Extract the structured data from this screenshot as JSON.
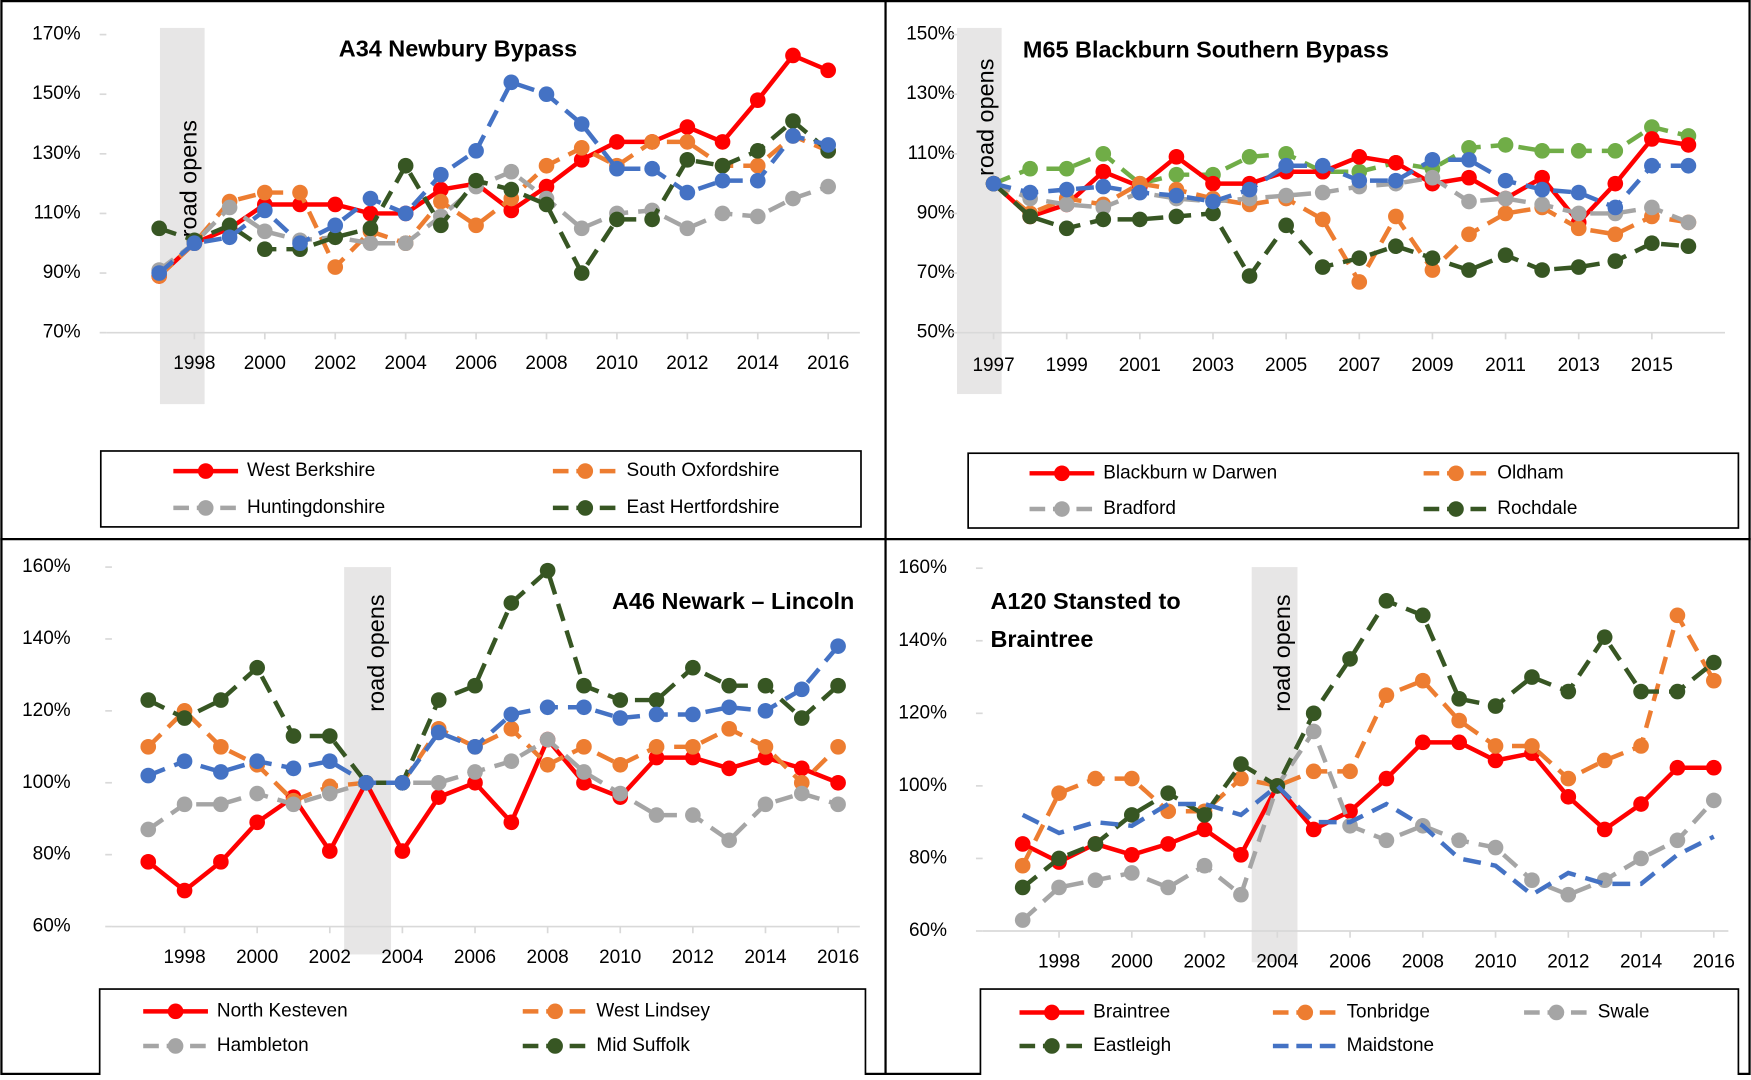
{
  "chart_data": [
    {
      "type": "line",
      "title": "A34 Newbury Bypass",
      "annotation": "road opens",
      "x": [
        1997,
        1998,
        1999,
        2000,
        2001,
        2002,
        2003,
        2004,
        2005,
        2006,
        2007,
        2008,
        2009,
        2010,
        2011,
        2012,
        2013,
        2014,
        2015,
        2016
      ],
      "xlim": [
        1995.5,
        2016.9
      ],
      "xticks": [
        1998,
        2000,
        2002,
        2004,
        2006,
        2008,
        2010,
        2012,
        2014,
        2016
      ],
      "ylim": [
        70,
        170
      ],
      "yticks": [
        {
          "value": 70,
          "label": "70%"
        },
        {
          "value": 90,
          "label": "90%"
        },
        {
          "value": 110,
          "label": "110%"
        },
        {
          "value": 130,
          "label": "130%"
        },
        {
          "value": 150,
          "label": "150%"
        },
        {
          "value": 170,
          "label": "170%"
        }
      ],
      "series": [
        {
          "name": "West Berkshire",
          "color": "#ff0000",
          "dashed": false,
          "markers": true,
          "values": [
            89,
            100,
            105,
            113,
            113,
            113,
            110,
            110,
            118,
            120,
            111,
            119,
            128,
            134,
            134,
            139,
            134,
            148,
            163,
            158
          ]
        },
        {
          "name": "South Oxfordshire",
          "color": "#ed7d31",
          "dashed": true,
          "markers": true,
          "values": [
            89,
            100,
            114,
            117,
            117,
            92,
            104,
            100,
            114,
            106,
            115,
            126,
            132,
            126,
            134,
            134,
            126,
            126,
            136,
            131
          ]
        },
        {
          "name": "Huntingdonshire",
          "color": "#a5a5a5",
          "dashed": true,
          "markers": true,
          "values": [
            91,
            100,
            112,
            104,
            101,
            102,
            100,
            100,
            109,
            119,
            124,
            115,
            105,
            110,
            111,
            105,
            110,
            109,
            115,
            119
          ]
        },
        {
          "name": "East Hertfordshire",
          "color": "#375623",
          "dashed": true,
          "markers": true,
          "values": [
            105,
            101,
            106,
            98,
            98,
            102,
            105,
            126,
            106,
            121,
            118,
            113,
            90,
            108,
            108,
            128,
            126,
            131,
            141,
            131
          ]
        },
        {
          "color": "#4472c4",
          "dashed": true,
          "markers": true,
          "values": [
            90,
            100,
            102,
            111,
            100,
            106,
            115,
            110,
            123,
            131,
            154,
            150,
            140,
            125,
            125,
            117,
            121,
            121,
            136,
            133
          ]
        }
      ]
    },
    {
      "type": "line",
      "title": "M65 Blackburn Southern Bypass",
      "annotation": "road opens",
      "x": [
        1997,
        1998,
        1999,
        2000,
        2001,
        2002,
        2003,
        2004,
        2005,
        2006,
        2007,
        2008,
        2009,
        2010,
        2011,
        2012,
        2013,
        2014,
        2015,
        2016
      ],
      "xlim": [
        1996,
        2017
      ],
      "xticks": [
        1997,
        1999,
        2001,
        2003,
        2005,
        2007,
        2009,
        2011,
        2013,
        2015
      ],
      "ylim": [
        50,
        150
      ],
      "yticks": [
        {
          "value": 50,
          "label": "50%"
        },
        {
          "value": 70,
          "label": "70%"
        },
        {
          "value": 90,
          "label": "90%"
        },
        {
          "value": 110,
          "label": "110%"
        },
        {
          "value": 130,
          "label": "130%"
        },
        {
          "value": 150,
          "label": "150%"
        }
      ],
      "series": [
        {
          "color": "#70ad47",
          "dashed": true,
          "markers": true,
          "values": [
            100,
            105,
            105,
            110,
            100,
            103,
            103,
            109,
            110,
            104,
            104,
            107,
            105,
            112,
            113,
            111,
            111,
            111,
            119,
            116
          ]
        },
        {
          "name": "Blackburn w Darwen",
          "color": "#ff0000",
          "dashed": false,
          "markers": true,
          "values": [
            100,
            89,
            93,
            104,
            99,
            109,
            100,
            100,
            104,
            104,
            109,
            107,
            100,
            102,
            95,
            102,
            87,
            100,
            115,
            113
          ]
        },
        {
          "name": "Oldham",
          "color": "#ed7d31",
          "dashed": true,
          "markers": true,
          "values": [
            100,
            90,
            95,
            93,
            100,
            98,
            95,
            93,
            95,
            88,
            67,
            89,
            71,
            83,
            90,
            92,
            85,
            83,
            89,
            87
          ]
        },
        {
          "name": "Bradford",
          "color": "#a5a5a5",
          "dashed": true,
          "markers": true,
          "values": [
            100,
            95,
            93,
            92,
            97,
            95,
            94,
            95,
            96,
            97,
            99,
            100,
            102,
            94,
            95,
            93,
            90,
            90,
            92,
            87
          ]
        },
        {
          "name": "Rochdale",
          "color": "#375623",
          "dashed": true,
          "markers": true,
          "values": [
            100,
            89,
            85,
            88,
            88,
            89,
            90,
            69,
            86,
            72,
            75,
            79,
            75,
            71,
            76,
            71,
            72,
            74,
            80,
            79
          ]
        },
        {
          "color": "#4472c4",
          "dashed": true,
          "markers": true,
          "values": [
            100,
            97,
            98,
            99,
            97,
            96,
            94,
            98,
            106,
            106,
            101,
            101,
            108,
            108,
            101,
            98,
            97,
            92,
            106,
            106
          ]
        }
      ]
    },
    {
      "type": "line",
      "title": "A46 Newark – Lincoln",
      "annotation": "road opens",
      "x": [
        1997,
        1998,
        1999,
        2000,
        2001,
        2002,
        2003,
        2004,
        2005,
        2006,
        2007,
        2008,
        2009,
        2010,
        2011,
        2012,
        2013,
        2014,
        2015,
        2016
      ],
      "xlim": [
        1996,
        2016.6
      ],
      "xticks": [
        1998,
        2000,
        2002,
        2004,
        2006,
        2008,
        2010,
        2012,
        2014,
        2016
      ],
      "ylim": [
        60,
        160
      ],
      "yticks": [
        {
          "value": 60,
          "label": "60%"
        },
        {
          "value": 80,
          "label": "80%"
        },
        {
          "value": 100,
          "label": "100%"
        },
        {
          "value": 120,
          "label": "120%"
        },
        {
          "value": 140,
          "label": "140%"
        },
        {
          "value": 160,
          "label": "160%"
        }
      ],
      "series": [
        {
          "name": "North Kesteven",
          "color": "#ff0000",
          "dashed": false,
          "markers": true,
          "values": [
            78,
            70,
            78,
            89,
            96,
            81,
            100,
            81,
            96,
            100,
            89,
            112,
            100,
            96,
            107,
            107,
            104,
            107,
            104,
            100
          ]
        },
        {
          "name": "West Lindsey",
          "color": "#ed7d31",
          "dashed": true,
          "markers": true,
          "values": [
            110,
            120,
            110,
            105,
            95,
            99,
            100,
            100,
            115,
            110,
            115,
            105,
            110,
            105,
            110,
            110,
            115,
            110,
            100,
            110
          ]
        },
        {
          "name": "Hambleton",
          "color": "#a5a5a5",
          "dashed": true,
          "markers": true,
          "values": [
            87,
            94,
            94,
            97,
            94,
            97,
            100,
            100,
            100,
            103,
            106,
            112,
            103,
            97,
            91,
            91,
            84,
            94,
            97,
            94
          ]
        },
        {
          "name": "Mid Suffolk",
          "color": "#375623",
          "dashed": true,
          "markers": true,
          "values": [
            123,
            118,
            123,
            132,
            113,
            113,
            100,
            100,
            123,
            127,
            150,
            159,
            127,
            123,
            123,
            132,
            127,
            127,
            118,
            127
          ]
        },
        {
          "color": "#4472c4",
          "dashed": true,
          "markers": true,
          "values": [
            102,
            106,
            103,
            106,
            104,
            106,
            100,
            100,
            114,
            110,
            119,
            121,
            121,
            118,
            119,
            119,
            121,
            120,
            126,
            138
          ]
        }
      ]
    },
    {
      "type": "line",
      "title": "A120 Stansted to Braintree",
      "annotation": "road opens",
      "x": [
        1997,
        1998,
        1999,
        2000,
        2001,
        2002,
        2003,
        2004,
        2005,
        2006,
        2007,
        2008,
        2009,
        2010,
        2011,
        2012,
        2013,
        2014,
        2015,
        2016
      ],
      "xlim": [
        1995.9,
        2016.4
      ],
      "xticks": [
        1998,
        2000,
        2002,
        2004,
        2006,
        2008,
        2010,
        2012,
        2014,
        2016
      ],
      "ylim": [
        60,
        160
      ],
      "yticks": [
        {
          "value": 60,
          "label": "60%"
        },
        {
          "value": 80,
          "label": "80%"
        },
        {
          "value": 100,
          "label": "100%"
        },
        {
          "value": 120,
          "label": "120%"
        },
        {
          "value": 140,
          "label": "140%"
        },
        {
          "value": 160,
          "label": "160%"
        }
      ],
      "series": [
        {
          "name": "Braintree",
          "color": "#ff0000",
          "dashed": false,
          "markers": true,
          "values": [
            84,
            79,
            84,
            81,
            84,
            88,
            81,
            100,
            88,
            93,
            102,
            112,
            112,
            107,
            109,
            97,
            88,
            95,
            105,
            105
          ]
        },
        {
          "name": "Tonbridge",
          "color": "#ed7d31",
          "dashed": true,
          "markers": true,
          "values": [
            78,
            98,
            102,
            102,
            93,
            93,
            102,
            100,
            104,
            104,
            125,
            129,
            118,
            111,
            111,
            102,
            107,
            111,
            147,
            129
          ]
        },
        {
          "name": "Swale",
          "color": "#a5a5a5",
          "dashed": true,
          "markers": true,
          "values": [
            63,
            72,
            74,
            76,
            72,
            78,
            70,
            100,
            115,
            89,
            85,
            89,
            85,
            83,
            74,
            70,
            74,
            80,
            85,
            96
          ]
        },
        {
          "name": "Eastleigh",
          "color": "#375623",
          "dashed": true,
          "markers": true,
          "values": [
            72,
            80,
            84,
            92,
            98,
            92,
            106,
            100,
            120,
            135,
            151,
            147,
            124,
            122,
            130,
            126,
            141,
            126,
            126,
            134
          ]
        },
        {
          "name": "Maidstone",
          "color": "#4472c4",
          "dashed": true,
          "markers": false,
          "values": [
            92,
            87,
            90,
            89,
            95,
            95,
            92,
            100,
            90,
            90,
            95,
            89,
            80,
            78,
            70,
            76,
            73,
            73,
            81,
            86
          ]
        }
      ]
    }
  ]
}
